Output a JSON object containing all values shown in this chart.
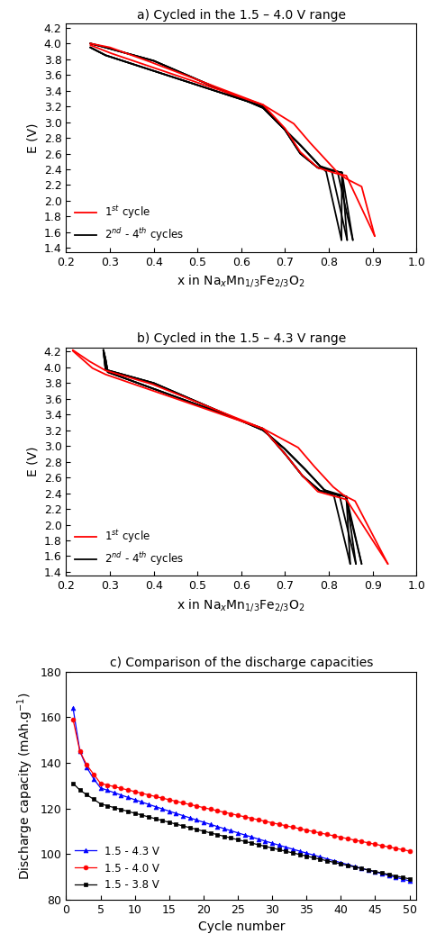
{
  "panel_a_title": "a) Cycled in the 1.5 – 4.0 V range",
  "panel_b_title": "b) Cycled in the 1.5 – 4.3 V range",
  "panel_c_title": "c) Comparison of the discharge capacities",
  "xlabel_ab": "x in Na$_x$Mn$_{1/3}$Fe$_{2/3}$O$_2$",
  "ylabel_ab": "E (V)",
  "xlabel_c": "Cycle number",
  "ylabel_c": "Discharge capacity (mAh.g$^{-1}$)",
  "legend_cycle1": "1$^{st}$ cycle",
  "legend_cycle2": "2$^{nd}$ - 4$^{th}$ cycles",
  "legend_43": "1.5 - 4.3 V",
  "legend_40": "1.5 - 4.0 V",
  "legend_38": "1.5 - 3.8 V",
  "color_red": "#FF0000",
  "color_black": "#000000",
  "color_blue": "#0000FF",
  "xlim_ab": [
    0.2,
    1.0
  ],
  "ylim_a": [
    1.35,
    4.25
  ],
  "ylim_b": [
    1.35,
    4.25
  ],
  "ylim_c": [
    80,
    180
  ],
  "xticks_ab": [
    0.2,
    0.3,
    0.4,
    0.5,
    0.6,
    0.7,
    0.8,
    0.9,
    1.0
  ],
  "yticks_ab": [
    1.4,
    1.6,
    1.8,
    2.0,
    2.2,
    2.4,
    2.6,
    2.8,
    3.0,
    3.2,
    3.4,
    3.6,
    3.8,
    4.0,
    4.2
  ],
  "xticks_c": [
    0,
    5,
    10,
    15,
    20,
    25,
    30,
    35,
    40,
    45,
    50
  ],
  "yticks_c": [
    80,
    100,
    120,
    140,
    160,
    180
  ],
  "lw": 1.3
}
